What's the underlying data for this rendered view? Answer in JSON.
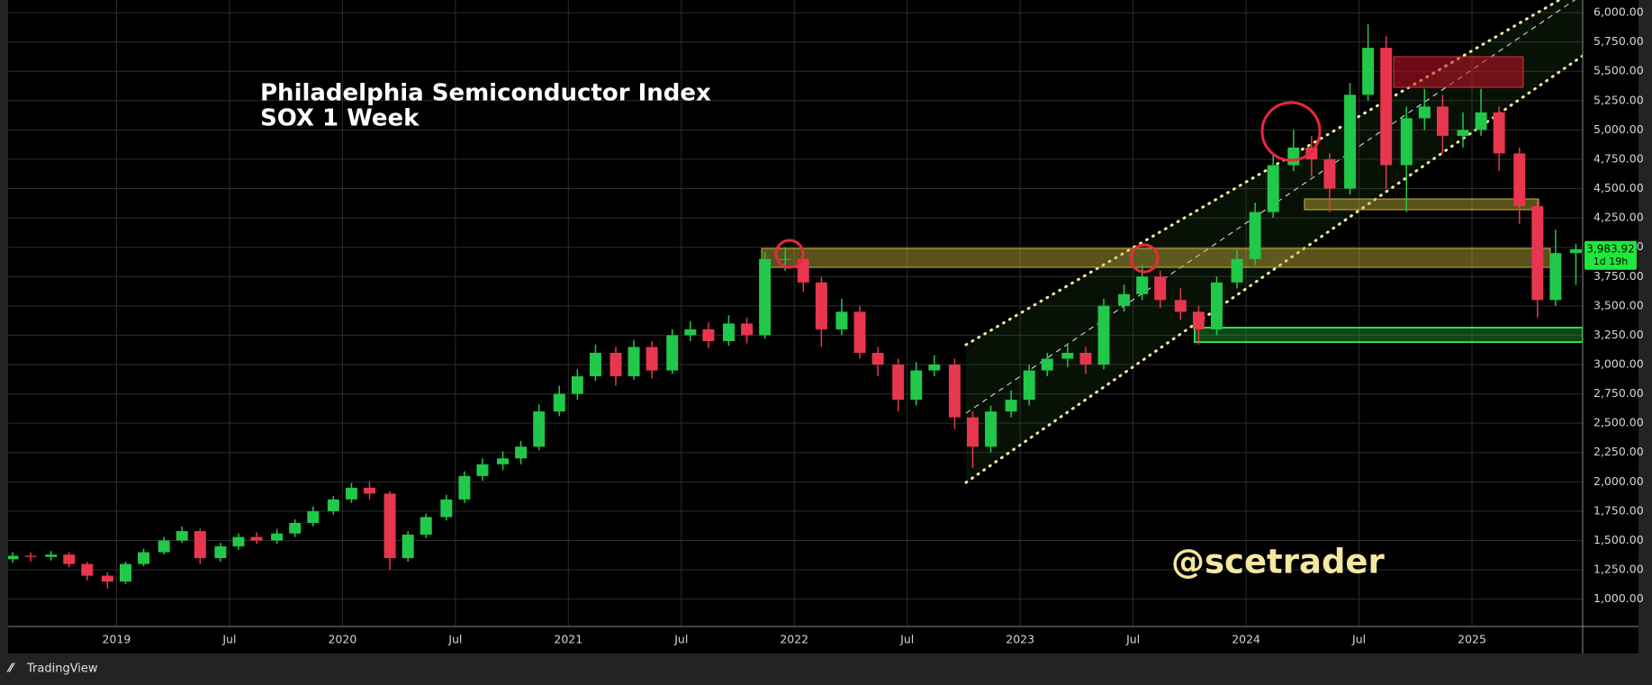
{
  "chart_data": {
    "type": "candlestick",
    "title": "Philadelphia Semiconductor Index",
    "subtitle": "SOX 1 Week",
    "watermark": "@scetrader",
    "brand": "TradingView",
    "up_color": "#22c84a",
    "down_color": "#e8364f",
    "grid": true,
    "x": [
      2018.54,
      2018.62,
      2018.71,
      2018.79,
      2018.87,
      2018.96,
      2019.04,
      2019.12,
      2019.21,
      2019.29,
      2019.37,
      2019.46,
      2019.54,
      2019.62,
      2019.71,
      2019.79,
      2019.87,
      2019.96,
      2020.04,
      2020.12,
      2020.21,
      2020.29,
      2020.37,
      2020.46,
      2020.54,
      2020.62,
      2020.71,
      2020.79,
      2020.87,
      2020.96,
      2021.04,
      2021.12,
      2021.21,
      2021.29,
      2021.37,
      2021.46,
      2021.54,
      2021.62,
      2021.71,
      2021.79,
      2021.87,
      2021.96,
      2022.04,
      2022.12,
      2022.21,
      2022.29,
      2022.37,
      2022.46,
      2022.54,
      2022.62,
      2022.71,
      2022.79,
      2022.87,
      2022.96,
      2023.04,
      2023.12,
      2023.21,
      2023.29,
      2023.37,
      2023.46,
      2023.54,
      2023.62,
      2023.71,
      2023.79,
      2023.87,
      2023.96,
      2024.04,
      2024.12,
      2024.21,
      2024.29,
      2024.37,
      2024.46,
      2024.54,
      2024.62,
      2024.71,
      2024.79,
      2024.87,
      2024.96,
      2025.04,
      2025.12,
      2025.21,
      2025.29,
      2025.37,
      2025.46
    ],
    "open": [
      1340,
      1370,
      1360,
      1380,
      1300,
      1200,
      1150,
      1300,
      1400,
      1500,
      1580,
      1350,
      1450,
      1530,
      1500,
      1560,
      1650,
      1750,
      1850,
      1950,
      1900,
      1350,
      1550,
      1700,
      1850,
      2050,
      2150,
      2200,
      2300,
      2600,
      2750,
      2900,
      3100,
      2900,
      3150,
      2950,
      3250,
      3300,
      3200,
      3350,
      3250,
      3900,
      3900,
      3700,
      3300,
      3450,
      3100,
      3000,
      2700,
      2950,
      3000,
      2550,
      2300,
      2600,
      2700,
      2950,
      3050,
      3100,
      3000,
      3500,
      3600,
      3750,
      3550,
      3450,
      3300,
      3700,
      3900,
      4300,
      4700,
      4850,
      4750,
      4500,
      5300,
      5700,
      4700,
      5100,
      5200,
      4950,
      5000,
      5150,
      4800,
      4350,
      3550,
      3950
    ],
    "high": [
      1400,
      1400,
      1410,
      1400,
      1320,
      1230,
      1320,
      1430,
      1530,
      1620,
      1600,
      1480,
      1560,
      1570,
      1600,
      1680,
      1790,
      1880,
      1990,
      2000,
      1920,
      1580,
      1730,
      1890,
      2090,
      2200,
      2260,
      2350,
      2660,
      2820,
      2960,
      3170,
      3150,
      3210,
      3200,
      3300,
      3370,
      3360,
      3420,
      3400,
      3960,
      4000,
      3960,
      3750,
      3560,
      3500,
      3150,
      3050,
      3020,
      3080,
      3050,
      2600,
      2650,
      2780,
      3000,
      3100,
      3180,
      3150,
      3560,
      3680,
      3850,
      3800,
      3650,
      3500,
      3750,
      3980,
      4380,
      4800,
      5000,
      4950,
      4800,
      5400,
      5900,
      5800,
      5200,
      5350,
      5300,
      5150,
      5350,
      5200,
      4850,
      4400,
      4150,
      4030
    ],
    "low": [
      1310,
      1320,
      1330,
      1270,
      1160,
      1090,
      1130,
      1280,
      1380,
      1480,
      1300,
      1320,
      1420,
      1470,
      1470,
      1530,
      1620,
      1720,
      1820,
      1850,
      1250,
      1320,
      1520,
      1670,
      1820,
      2010,
      2100,
      2150,
      2270,
      2560,
      2700,
      2860,
      2820,
      2870,
      2880,
      2920,
      3200,
      3140,
      3160,
      3180,
      3220,
      3800,
      3620,
      3150,
      3250,
      3050,
      2900,
      2600,
      2650,
      2900,
      2450,
      2120,
      2250,
      2550,
      2650,
      2900,
      2980,
      2920,
      2960,
      3450,
      3550,
      3480,
      3380,
      3170,
      3250,
      3650,
      3850,
      4250,
      4650,
      4600,
      4300,
      4450,
      5250,
      4500,
      4300,
      5000,
      4800,
      4850,
      4950,
      4650,
      4200,
      3400,
      3500,
      3680
    ],
    "close": [
      1370,
      1360,
      1380,
      1300,
      1200,
      1150,
      1300,
      1400,
      1500,
      1580,
      1350,
      1450,
      1530,
      1500,
      1560,
      1650,
      1750,
      1850,
      1950,
      1900,
      1350,
      1550,
      1700,
      1850,
      2050,
      2150,
      2200,
      2300,
      2600,
      2750,
      2900,
      3100,
      2900,
      3150,
      2950,
      3250,
      3300,
      3200,
      3350,
      3250,
      3900,
      3900,
      3700,
      3300,
      3450,
      3100,
      3000,
      2700,
      2950,
      3000,
      2550,
      2300,
      2600,
      2700,
      2950,
      3050,
      3100,
      3000,
      3500,
      3600,
      3750,
      3550,
      3450,
      3300,
      3700,
      3900,
      4300,
      4700,
      4850,
      4750,
      4500,
      5300,
      5700,
      4700,
      5100,
      5200,
      4950,
      5000,
      5150,
      4800,
      4350,
      3550,
      3950,
      3983.92
    ],
    "last_price": {
      "value": 3983.92,
      "label": "3,983.92"
    },
    "countdown": "1d 19h",
    "xlim": [
      2018.52,
      2025.49
    ],
    "xticks": [
      {
        "value": 2019,
        "label": "2019"
      },
      {
        "value": 2019.5,
        "label": "Jul"
      },
      {
        "value": 2020,
        "label": "2020"
      },
      {
        "value": 2020.5,
        "label": "Jul"
      },
      {
        "value": 2021,
        "label": "2021"
      },
      {
        "value": 2021.5,
        "label": "Jul"
      },
      {
        "value": 2022,
        "label": "2022"
      },
      {
        "value": 2022.5,
        "label": "Jul"
      },
      {
        "value": 2023,
        "label": "2023"
      },
      {
        "value": 2023.5,
        "label": "Jul"
      },
      {
        "value": 2024,
        "label": "2024"
      },
      {
        "value": 2024.5,
        "label": "Jul"
      },
      {
        "value": 2025,
        "label": "2025"
      }
    ],
    "ylim": [
      767,
      6108
    ],
    "yticks": [
      {
        "value": 1000,
        "label": "1,000.00"
      },
      {
        "value": 1250,
        "label": "1,250.00"
      },
      {
        "value": 1500,
        "label": "1,500.00"
      },
      {
        "value": 1750,
        "label": "1,750.00"
      },
      {
        "value": 2000,
        "label": "2,000.00"
      },
      {
        "value": 2250,
        "label": "2,250.00"
      },
      {
        "value": 2500,
        "label": "2,500.00"
      },
      {
        "value": 2750,
        "label": "2,750.00"
      },
      {
        "value": 3000,
        "label": "3,000.00"
      },
      {
        "value": 3250,
        "label": "3,250.00"
      },
      {
        "value": 3500,
        "label": "3,500.00"
      },
      {
        "value": 3750,
        "label": "3,750.00"
      },
      {
        "value": 4000,
        "label": "4,000.00"
      },
      {
        "value": 4250,
        "label": "4,250.00"
      },
      {
        "value": 4500,
        "label": "4,500.00"
      },
      {
        "value": 4750,
        "label": "4,750.00"
      },
      {
        "value": 5000,
        "label": "5,000.00"
      },
      {
        "value": 5250,
        "label": "5,250.00"
      },
      {
        "value": 5500,
        "label": "5,500.00"
      },
      {
        "value": 5750,
        "label": "5,750.00"
      },
      {
        "value": 6000,
        "label": "6,000.00"
      }
    ]
  }
}
